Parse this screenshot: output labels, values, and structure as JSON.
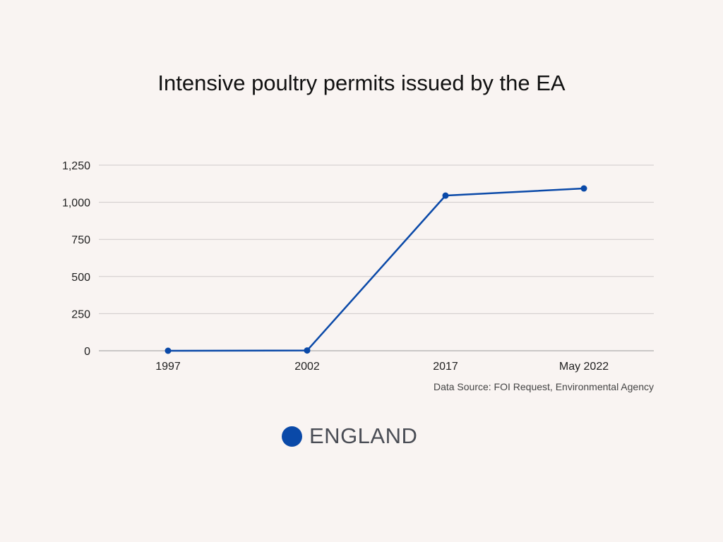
{
  "chart_data": {
    "type": "line",
    "title": "Intensive poultry permits issued by the EA",
    "xlabel": "",
    "ylabel": "",
    "categories": [
      "1997",
      "2002",
      "2017",
      "May 2022"
    ],
    "ylim": [
      0,
      1250
    ],
    "yticks": [
      0,
      250,
      500,
      750,
      1000,
      1250
    ],
    "ytick_labels": [
      "0",
      "250",
      "500",
      "750",
      "1,000",
      "1,250"
    ],
    "grid": true,
    "series": [
      {
        "name": "ENGLAND",
        "values": [
          0,
          2,
          1045,
          1093
        ],
        "color": "#0a49a8"
      }
    ],
    "source": "Data Source: FOI Request, Environmental Agency",
    "legend_position": "bottom-center"
  }
}
